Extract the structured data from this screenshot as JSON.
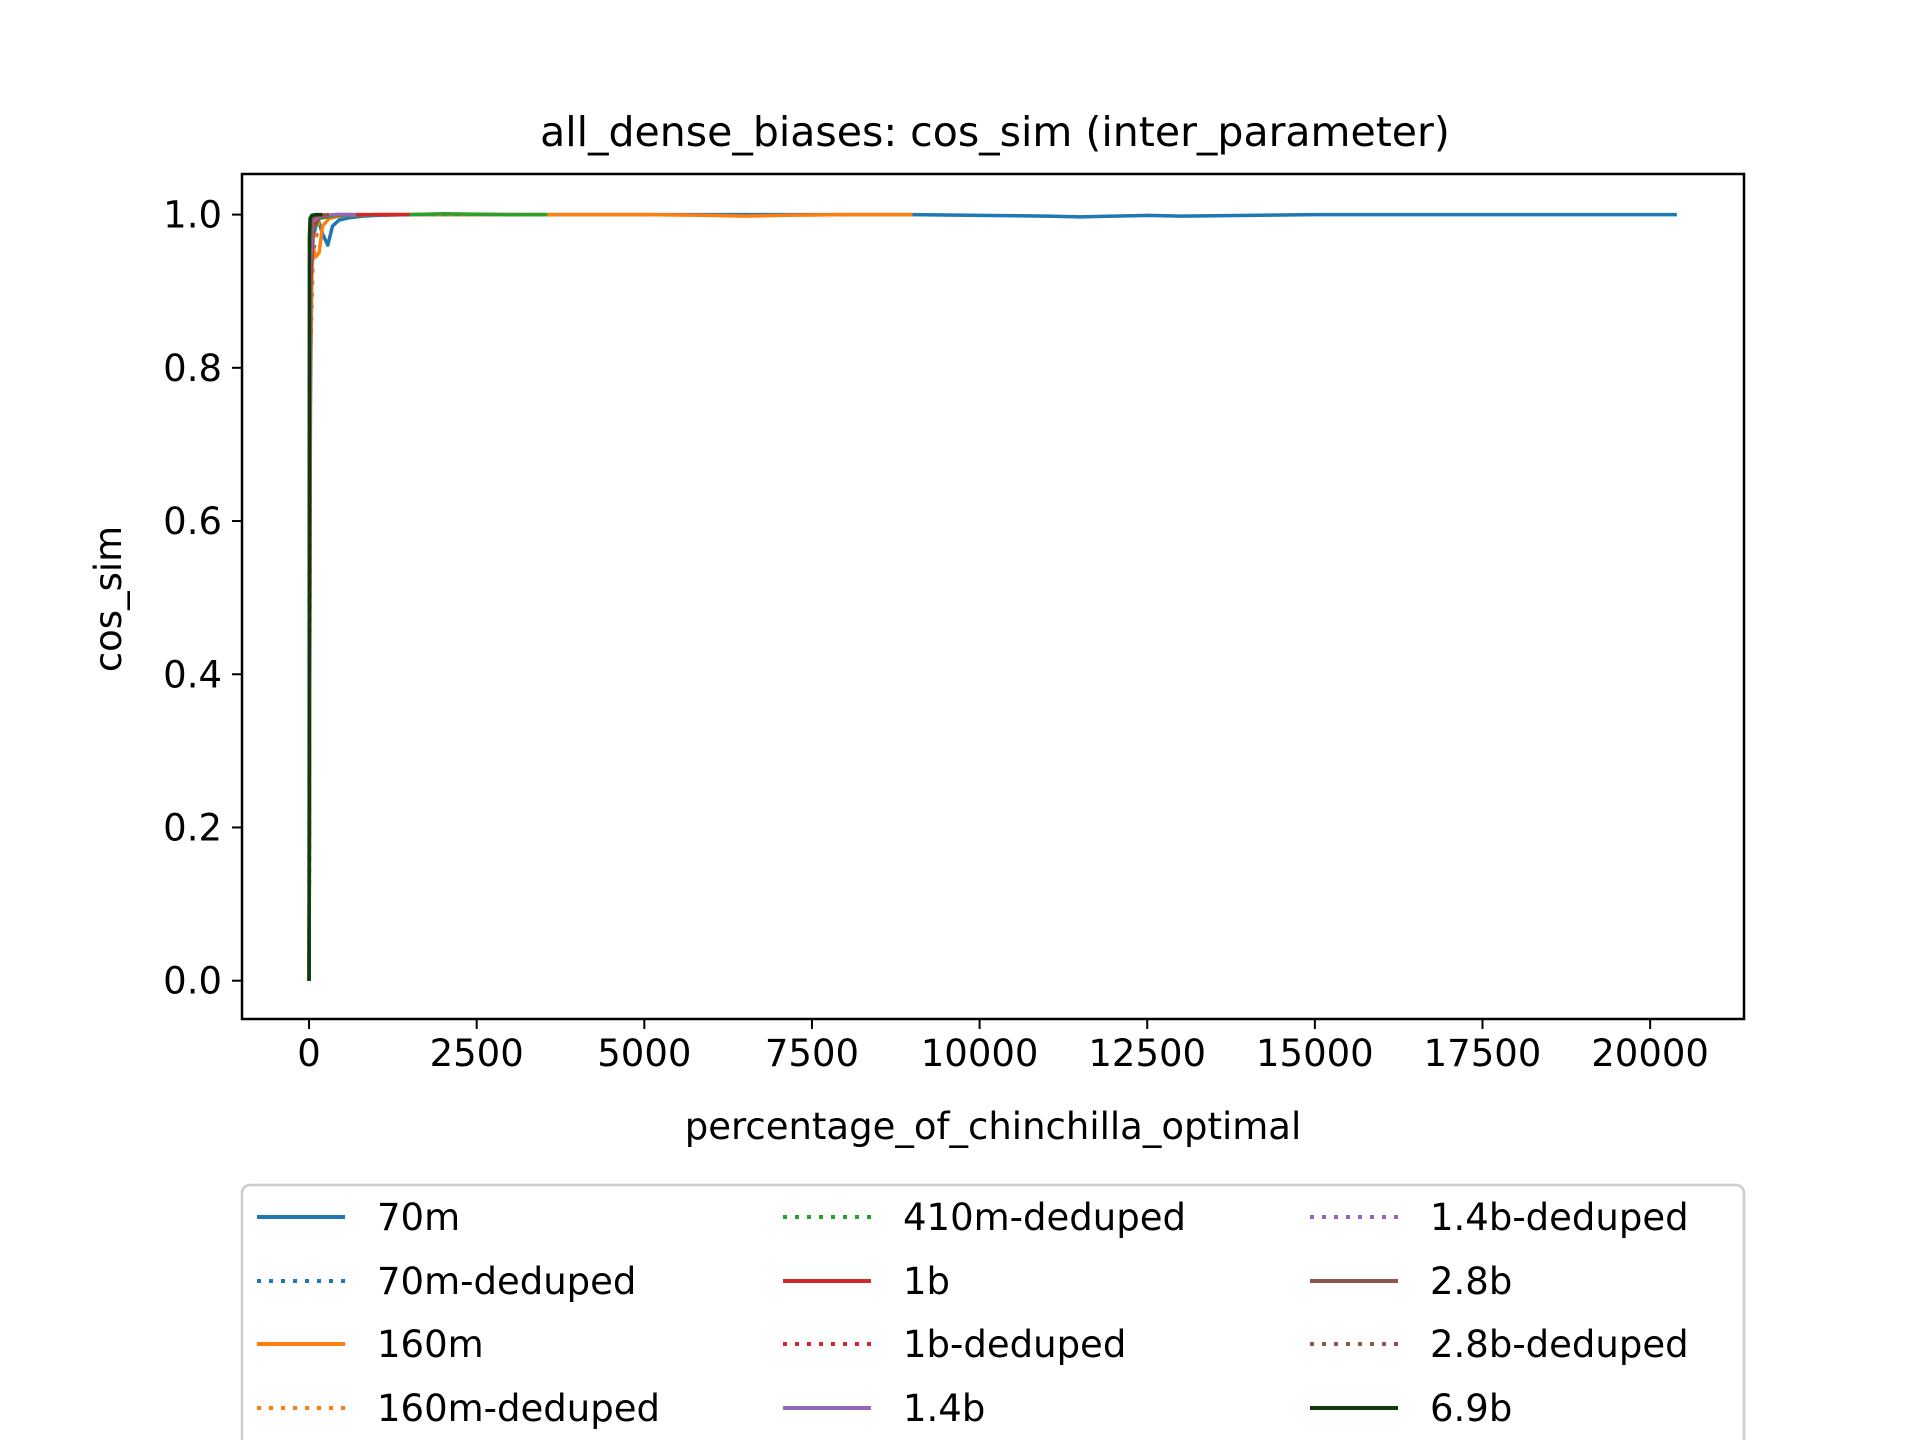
{
  "chart_data": {
    "type": "line",
    "title": "all_dense_biases: cos_sim (inter_parameter)",
    "xlabel": "percentage_of_chinchilla_optimal",
    "ylabel": "cos_sim",
    "xlim": [
      -1000,
      21400
    ],
    "ylim": [
      -0.05,
      1.053
    ],
    "xticks": [
      0,
      2500,
      5000,
      7500,
      10000,
      12500,
      15000,
      17500,
      20000
    ],
    "xtick_labels": [
      "0",
      "2500",
      "5000",
      "7500",
      "10000",
      "12500",
      "15000",
      "17500",
      "20000"
    ],
    "yticks": [
      0.0,
      0.2,
      0.4,
      0.6,
      0.8,
      1.0
    ],
    "ytick_labels": [
      "0.0",
      "0.2",
      "0.4",
      "0.6",
      "0.8",
      "1.0"
    ],
    "grid": false,
    "legend_position": "bottom, below plot, 3 columns",
    "series": [
      {
        "name": "70m",
        "color": "#1f77b4",
        "dash": "solid",
        "x": [
          0,
          20,
          40,
          60,
          100,
          150,
          200,
          280,
          350,
          450,
          600,
          800,
          1000,
          1500,
          2500,
          3500,
          5000,
          6500,
          8000,
          9000,
          10000,
          11000,
          11500,
          12000,
          12500,
          13000,
          15000,
          17500,
          20000,
          20400
        ],
        "y": [
          0.0,
          0.75,
          0.93,
          0.97,
          0.985,
          0.99,
          0.975,
          0.96,
          0.985,
          0.993,
          0.996,
          0.998,
          0.999,
          1.0,
          1.0,
          1.0,
          1.0,
          1.0,
          1.0,
          1.0,
          0.999,
          0.998,
          0.997,
          0.998,
          0.999,
          0.998,
          1.0,
          1.0,
          1.0,
          1.0
        ]
      },
      {
        "name": "70m-deduped",
        "color": "#1f77b4",
        "dash": "dotted",
        "x": [
          0,
          20,
          60,
          150,
          300,
          600,
          1000,
          1500
        ],
        "y": [
          0.0,
          0.8,
          0.95,
          0.99,
          0.997,
          0.999,
          1.0,
          1.0
        ]
      },
      {
        "name": "160m",
        "color": "#ff7f0e",
        "dash": "solid",
        "x": [
          0,
          20,
          50,
          100,
          150,
          200,
          300,
          500,
          1000,
          2000,
          3500,
          5000,
          6000,
          6500,
          7000,
          8000,
          9000
        ],
        "y": [
          0.0,
          0.8,
          0.96,
          0.945,
          0.95,
          0.985,
          0.995,
          0.999,
          1.0,
          1.0,
          1.0,
          1.0,
          0.999,
          0.998,
          0.999,
          1.0,
          1.0
        ]
      },
      {
        "name": "160m-deduped",
        "color": "#ff7f0e",
        "dash": "dotted",
        "x": [
          0,
          20,
          60,
          150,
          300,
          600,
          1000
        ],
        "y": [
          0.0,
          0.85,
          0.96,
          0.99,
          0.997,
          0.999,
          1.0
        ]
      },
      {
        "name": "410m-deduped",
        "color": "#2ca02c",
        "dash": "dotted",
        "x": [
          0,
          20,
          60,
          150,
          400,
          1000,
          2000,
          3500
        ],
        "y": [
          0.0,
          0.9,
          0.98,
          0.995,
          0.999,
          1.0,
          1.0,
          1.0
        ]
      },
      {
        "name": "410m",
        "color": "#2ca02c",
        "dash": "solid",
        "x": [
          0,
          20,
          60,
          150,
          400,
          1000,
          1500,
          2000,
          3000,
          3550
        ],
        "y": [
          0.0,
          0.9,
          0.98,
          0.995,
          0.999,
          1.0,
          1.0,
          1.001,
          1.0,
          1.0
        ]
      },
      {
        "name": "1b",
        "color": "#d62728",
        "dash": "solid",
        "x": [
          0,
          20,
          60,
          150,
          400,
          800,
          1500
        ],
        "y": [
          0.0,
          0.9,
          0.985,
          0.997,
          1.0,
          1.0,
          1.0
        ]
      },
      {
        "name": "1b-deduped",
        "color": "#d62728",
        "dash": "dotted",
        "x": [
          0,
          20,
          60,
          150,
          400,
          800
        ],
        "y": [
          0.0,
          0.9,
          0.985,
          0.997,
          1.0,
          1.0
        ]
      },
      {
        "name": "1.4b",
        "color": "#9467bd",
        "dash": "solid",
        "x": [
          0,
          15,
          50,
          150,
          400,
          700
        ],
        "y": [
          0.0,
          0.92,
          0.99,
          0.998,
          1.0,
          1.0
        ]
      },
      {
        "name": "1.4b-deduped",
        "color": "#9467bd",
        "dash": "dotted",
        "x": [
          0,
          15,
          50,
          150,
          400
        ],
        "y": [
          0.0,
          0.92,
          0.99,
          0.998,
          1.0
        ]
      },
      {
        "name": "2.8b",
        "color": "#8c564b",
        "dash": "solid",
        "x": [
          0,
          10,
          40,
          120,
          300
        ],
        "y": [
          0.0,
          0.95,
          0.995,
          0.999,
          1.0
        ]
      },
      {
        "name": "2.8b-deduped",
        "color": "#8c564b",
        "dash": "dotted",
        "x": [
          0,
          10,
          40,
          120,
          250
        ],
        "y": [
          0.0,
          0.95,
          0.995,
          0.999,
          1.0
        ]
      },
      {
        "name": "6.9b",
        "color": "#0b3d0b",
        "dash": "solid",
        "x": [
          0,
          5,
          15,
          40,
          100,
          200
        ],
        "y": [
          0.0,
          0.97,
          0.995,
          0.999,
          1.0,
          1.0
        ]
      }
    ],
    "legend": [
      {
        "name": "70m",
        "color": "#1f77b4",
        "dash": "solid"
      },
      {
        "name": "70m-deduped",
        "color": "#1f77b4",
        "dash": "dotted"
      },
      {
        "name": "160m",
        "color": "#ff7f0e",
        "dash": "solid"
      },
      {
        "name": "160m-deduped",
        "color": "#ff7f0e",
        "dash": "dotted"
      },
      {
        "name": "410m-deduped",
        "color": "#2ca02c",
        "dash": "dotted"
      },
      {
        "name": "1b",
        "color": "#d62728",
        "dash": "solid"
      },
      {
        "name": "1b-deduped",
        "color": "#d62728",
        "dash": "dotted"
      },
      {
        "name": "1.4b",
        "color": "#9467bd",
        "dash": "solid"
      },
      {
        "name": "1.4b-deduped",
        "color": "#9467bd",
        "dash": "dotted"
      },
      {
        "name": "2.8b",
        "color": "#8c564b",
        "dash": "solid"
      },
      {
        "name": "2.8b-deduped",
        "color": "#8c564b",
        "dash": "dotted"
      },
      {
        "name": "6.9b",
        "color": "#0b3d0b",
        "dash": "solid"
      }
    ]
  }
}
